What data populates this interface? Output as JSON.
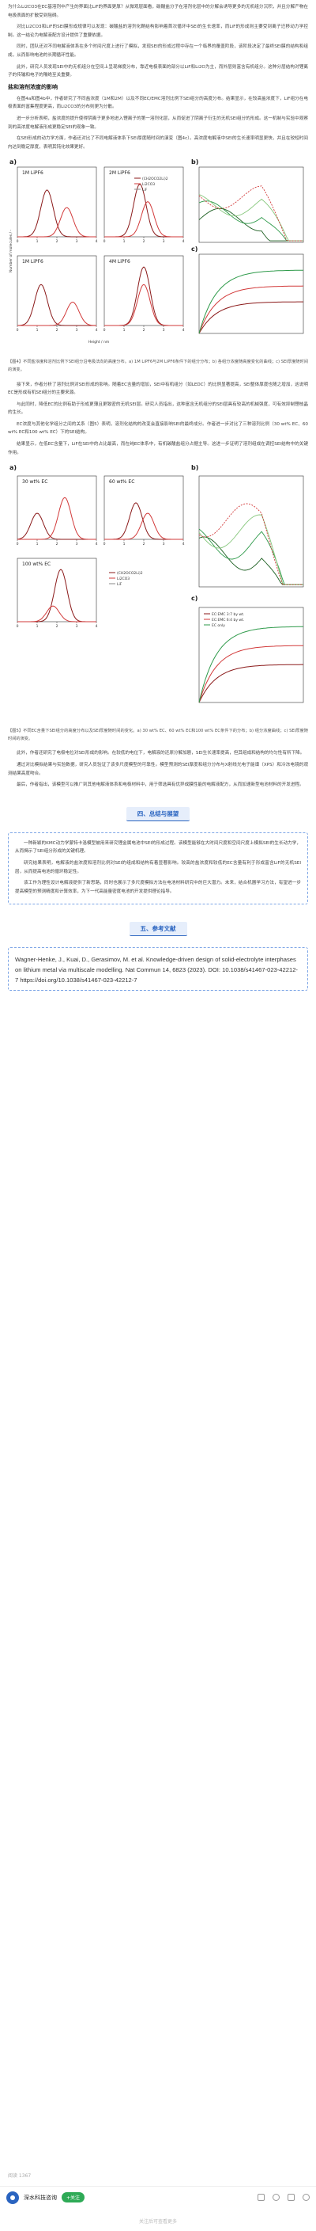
{
  "intro_paragraphs": [
    "为什么Li2CO3在EC基溶剂中产生的界面比LiF的界面更厚？从微观层面看，碳酸盐分子在溶剂化层中的分解会诱导更多的无机组分沉积，并且分解产物在电极表面的扩散受到阻碍。",
    "对比Li2CO3和LiF的SEI膜形成规律可以发现：碳酸盐的溶剂化鞘结构影响着首次循环中SEI的生长速率，而LiF的形成则主要受到离子迁移动力学控制。这一结论为电解液配方设计提供了重要依据。",
    "同时，团队还对不同电解液体系在多个时间尺度上进行了模拟，发现SEI的形成过程中存在一个临界的覆盖阶段，该阶段决定了最终SEI膜的结构和组成，从而影响电池的长期循环性能。",
    "此外，研究人员发现SEI中的无机组分在空间上呈现梯度分布，靠近电极表面的部分以LiF和Li2O为主，而外层则富含有机组分。这种分层结构对锂离子的传输和电子的隔绝至关重要。"
  ],
  "section_influence_title": "盐和溶剂浓度的影响",
  "influence_paragraphs": [
    "在图4a和图4b中，作者研究了不同盐浓度（1M和2M）以及不同EC/EMC溶剂比例下SEI组分的高度分布。结果显示，在较高盐浓度下，LiF组分在电极表面的富集程度更高，而Li2CO3的分布则更为分散。",
    "进一步分析表明，盐浓度的提升使得阴离子更多地进入锂离子的第一溶剂化层，从而促进了阴离子衍生的无机SEI组分的形成。这一机制与实验中观察到的高浓度电解液形成更稳定SEI的现象一致。",
    "在SEI形成的动力学方面，作者还对比了不同电解液体系下SEI厚度随时间的演变（图4c）。高浓度电解液中SEI的生长速率明显更快，并且在较短时间内达到稳定厚度，表明其钝化效果更好。"
  ],
  "figure4": {
    "caption": "【图4】不同盐浓度和溶剂比例下SEI组分沿电极法向的高度分布。a) 1M LiPF6与2M LiPF6条件下的组分分布；b) 各组分浓度随高度变化的曲线；c) SEI厚度随时间的演变。",
    "panels": [
      {
        "title": "1M LiPF6",
        "dist": [
          {
            "name": "Li2CO3",
            "peak": 1.5,
            "height": 0.8
          },
          {
            "name": "LiF",
            "peak": 2.5,
            "height": 0.5
          }
        ]
      },
      {
        "title": "2M LiPF6",
        "dist": [
          {
            "name": "Li2CO3",
            "peak": 1.8,
            "height": 0.9
          },
          {
            "name": "LiF",
            "peak": 2.2,
            "height": 0.6
          }
        ]
      },
      {
        "title": "1M LiPF6",
        "dist": [
          {
            "name": "Li2CO3",
            "peak": 1.2,
            "height": 0.7
          },
          {
            "name": "LiF",
            "peak": 2.8,
            "height": 0.4
          }
        ]
      },
      {
        "title": "4M LiPF6",
        "dist": [
          {
            "name": "Li2CO3",
            "peak": 2.0,
            "height": 1.0
          },
          {
            "name": "LiF",
            "peak": 2.0,
            "height": 0.7
          }
        ]
      }
    ],
    "label_a": "a)",
    "label_b": "b)",
    "label_c": "c)",
    "xlabel": "Height / nm",
    "ylabel": "Number of molecules / -",
    "legend": [
      "(CH2OCO2Li)2",
      "Li2CO3",
      "LiF"
    ]
  },
  "middle_paragraphs": [
    "接下来，作者分析了溶剂比例对SEI形成的影响。随着EC含量的增加，SEI中有机组分（如LEDC）的比例显著提高，SEI整体厚度也随之增加，这说明EC是形成有机SEI组分的主要来源。",
    "与此同时，降低EC的比例有助于形成更薄且更致密的无机SEI层。研究人员指出，这种富含无机组分的SEI层具有较高的机械强度，可有效抑制锂枝晶的生长。",
    "EC浓度与其他化学组分之间的关系（图5）表明，溶剂化结构的改变会直接影响SEI的最终成分。作者进一步对比了三种溶剂比例（30 wt% EC、60 wt% EC和100 wt% EC）下的SEI结构。",
    "结果显示，在低EC含量下，LiF在SEI中的占比最高，而在纯EC体系中，有机碳酸盐组分占据主导。这进一步证明了溶剂组成在调控SEI结构中的关键作用。"
  ],
  "figure5": {
    "caption": "【图5】不同EC含量下SEI组分的高度分布以及SEI厚度随时间的变化。a) 30 wt% EC、60 wt% EC和100 wt% EC条件下的分布；b) 组分浓度曲线；c) SEI厚度随时间的演变。",
    "panels": [
      {
        "title": "30 wt% EC",
        "dist": [
          {
            "name": "Li2CO3",
            "peak": 1.0,
            "height": 0.5
          },
          {
            "name": "LiF",
            "peak": 2.4,
            "height": 0.8
          }
        ]
      },
      {
        "title": "60 wt% EC",
        "dist": [
          {
            "name": "Li2CO3",
            "peak": 1.6,
            "height": 0.7
          },
          {
            "name": "LiF",
            "peak": 2.2,
            "height": 0.5
          }
        ]
      },
      {
        "title": "100 wt% EC",
        "dist": [
          {
            "name": "Li2CO3",
            "peak": 2.2,
            "height": 1.0
          },
          {
            "name": "LiF",
            "peak": 1.8,
            "height": 0.3
          }
        ]
      }
    ],
    "legend": [
      "EC:EMC 3:7 by wt.",
      "EC:EMC 6:4 by wt.",
      "EC only"
    ]
  },
  "late_paragraphs": [
    "此外，作者还研究了电极电位对SEI形成的影响。在较低的电位下，电解液的还原分解加剧，SEI生长速率提高，但其组成和结构的均匀性有所下降。",
    "通过对比模拟结果与实验数据，研究人员验证了该多尺度模型的可靠性。模型预测的SEI厚度和组分分布与X射线光电子能谱（XPS）和冷冻电镜的观测结果高度吻合。",
    "最后，作者指出，该模型可以推广到其他电解液体系和电极材料中，用于筛选具有优异成膜性能的电解液配方，从而加速新型电池材料的开发进程。"
  ],
  "summary_section": {
    "heading": "四、总结与展望",
    "paragraphs": [
      "一种新颖的KMC动力学蒙特卡洛模型被用来研究锂金属电池中SEI的形成过程。该模型能够在大时间尺度和空间尺度上模拟SEI的生长动力学，从而揭示了SEI组分形成的关键机理。",
      "研究结果表明，电解液的盐浓度和溶剂比例对SEI的组成和结构有着显著影响。较高的盐浓度和较低的EC含量有利于形成富含LiF的无机SEI层，从而提高电池的循环稳定性。",
      "该工作为理性设计电解液提供了新思路，同时也展示了多尺度模拟方法在电池材料研究中的巨大潜力。未来，结合机器学习方法，有望进一步提高模型的预测精度和计算效率，为下一代高能量密度电池的开发提供理论指导。"
    ]
  },
  "reference_section": {
    "heading": "五、参考文献",
    "text": "Wagner-Henke, J., Kuai, D., Gerasimov, M. et al. Knowledge-driven design of solid-electrolyte interphases on lithium metal via multiscale modelling. Nat Commun 14, 6823 (2023). DOI: 10.1038/s41467-023-42212-7 https://doi.org/10.1038/s41467-023-42212-7"
  },
  "footer": {
    "read_count": "阅读 1367",
    "brand": "深水科技咨询",
    "follow": "+关注",
    "note": "关注后可查看更多"
  },
  "colors": {
    "accent": "#2a64c0",
    "dark_red": "#8b1a1a",
    "red": "#d23a3a",
    "green": "#2e9a4a",
    "dark_green": "#1b5e20",
    "light_green": "#86c77c"
  }
}
